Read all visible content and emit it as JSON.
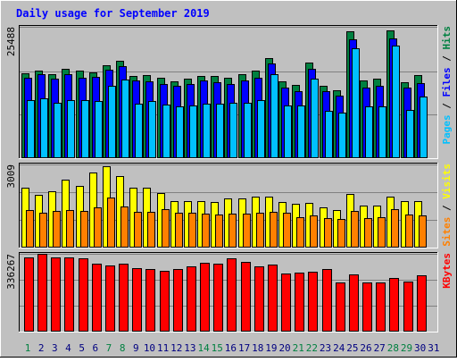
{
  "title": "Daily usage for September 2019",
  "colors": {
    "background": "#c0c0c0",
    "title": "#0000ff",
    "hits": "#008040",
    "files": "#0000ff",
    "pages": "#00c0ff",
    "visits": "#ffff00",
    "sites": "#ff8000",
    "kbytes": "#ff0000",
    "weekend_label": "#008040",
    "weekday_label": "#000080",
    "grid": "#808080"
  },
  "chart_data": [
    {
      "type": "bar",
      "panel": "hits-files-pages",
      "y_max_label": "25488",
      "ylim": [
        0,
        25488
      ],
      "legend": [
        "Pages",
        "Files",
        "Hits"
      ],
      "legend_separator": " / ",
      "categories": [
        "1",
        "2",
        "3",
        "4",
        "5",
        "6",
        "7",
        "8",
        "9",
        "10",
        "11",
        "12",
        "13",
        "14",
        "15",
        "16",
        "17",
        "18",
        "19",
        "20",
        "21",
        "22",
        "23",
        "24",
        "25",
        "26",
        "27",
        "28",
        "29",
        "30",
        "31"
      ],
      "series": [
        {
          "name": "Hits",
          "color_key": "hits",
          "values": [
            16400,
            16900,
            16300,
            17200,
            16900,
            16600,
            18000,
            18900,
            15800,
            16100,
            15500,
            14900,
            15400,
            15900,
            15800,
            15500,
            16300,
            17000,
            19300,
            14900,
            14200,
            18500,
            13900,
            13100,
            24600,
            15100,
            15300,
            24800,
            14700,
            16100,
            0
          ]
        },
        {
          "name": "Files",
          "color_key": "files",
          "values": [
            15500,
            16200,
            15400,
            16300,
            15600,
            15700,
            17100,
            17800,
            15000,
            14800,
            14400,
            13900,
            14300,
            15000,
            14600,
            14400,
            15100,
            15600,
            18400,
            13700,
            13000,
            17300,
            12900,
            12000,
            23000,
            13600,
            14000,
            23200,
            13600,
            14500,
            0
          ]
        },
        {
          "name": "Pages",
          "color_key": "pages",
          "values": [
            11200,
            11500,
            10600,
            11100,
            11200,
            11000,
            13900,
            15200,
            10500,
            11000,
            10300,
            9900,
            10100,
            10400,
            10400,
            10600,
            10700,
            11200,
            16200,
            10200,
            10100,
            15400,
            9100,
            8800,
            21300,
            10000,
            9900,
            21800,
            9300,
            11900,
            0
          ]
        }
      ]
    },
    {
      "type": "bar",
      "panel": "visits-sites",
      "y_max_label": "3009",
      "ylim": [
        0,
        3009
      ],
      "legend": [
        "Sites",
        "Visits"
      ],
      "legend_separator": " / ",
      "categories": [
        "1",
        "2",
        "3",
        "4",
        "5",
        "6",
        "7",
        "8",
        "9",
        "10",
        "11",
        "12",
        "13",
        "14",
        "15",
        "16",
        "17",
        "18",
        "19",
        "20",
        "21",
        "22",
        "23",
        "24",
        "25",
        "26",
        "27",
        "28",
        "29",
        "30",
        "31"
      ],
      "series": [
        {
          "name": "Visits",
          "color_key": "visits",
          "values": [
            2170,
            1890,
            2040,
            2450,
            2220,
            2700,
            2940,
            2580,
            2160,
            2160,
            1970,
            1680,
            1660,
            1660,
            1630,
            1750,
            1770,
            1820,
            1840,
            1630,
            1580,
            1600,
            1450,
            1340,
            1920,
            1490,
            1490,
            1820,
            1670,
            1660,
            0
          ]
        },
        {
          "name": "Sites",
          "color_key": "sites",
          "values": [
            1350,
            1230,
            1300,
            1350,
            1310,
            1430,
            1790,
            1480,
            1290,
            1290,
            1360,
            1250,
            1250,
            1200,
            1190,
            1220,
            1210,
            1230,
            1270,
            1240,
            1090,
            1160,
            1060,
            1010,
            1320,
            1050,
            1070,
            1380,
            1190,
            1150,
            0
          ]
        }
      ]
    },
    {
      "type": "bar",
      "panel": "kbytes",
      "y_max_label": "336267",
      "ylim": [
        0,
        336267
      ],
      "legend": [
        "KBytes"
      ],
      "legend_separator": "",
      "categories": [
        "1",
        "2",
        "3",
        "4",
        "5",
        "6",
        "7",
        "8",
        "9",
        "10",
        "11",
        "12",
        "13",
        "14",
        "15",
        "16",
        "17",
        "18",
        "19",
        "20",
        "21",
        "22",
        "23",
        "24",
        "25",
        "26",
        "27",
        "28",
        "29",
        "30",
        "31"
      ],
      "series": [
        {
          "name": "KBytes",
          "color_key": "kbytes",
          "values": [
            322000,
            336000,
            322000,
            322000,
            318000,
            294000,
            285000,
            294000,
            274000,
            268000,
            261000,
            269000,
            280000,
            297000,
            292000,
            315000,
            300000,
            283000,
            288000,
            252000,
            255000,
            260000,
            270000,
            211000,
            248000,
            211000,
            211000,
            231000,
            215000,
            242000,
            0
          ]
        }
      ]
    }
  ],
  "x_axis": {
    "labels": [
      "1",
      "2",
      "3",
      "4",
      "5",
      "6",
      "7",
      "8",
      "9",
      "10",
      "11",
      "12",
      "13",
      "14",
      "15",
      "16",
      "17",
      "18",
      "19",
      "20",
      "21",
      "22",
      "23",
      "24",
      "25",
      "26",
      "27",
      "28",
      "29",
      "30",
      "31"
    ],
    "weekend_days": [
      "1",
      "7",
      "8",
      "14",
      "15",
      "21",
      "22",
      "28",
      "29"
    ]
  }
}
